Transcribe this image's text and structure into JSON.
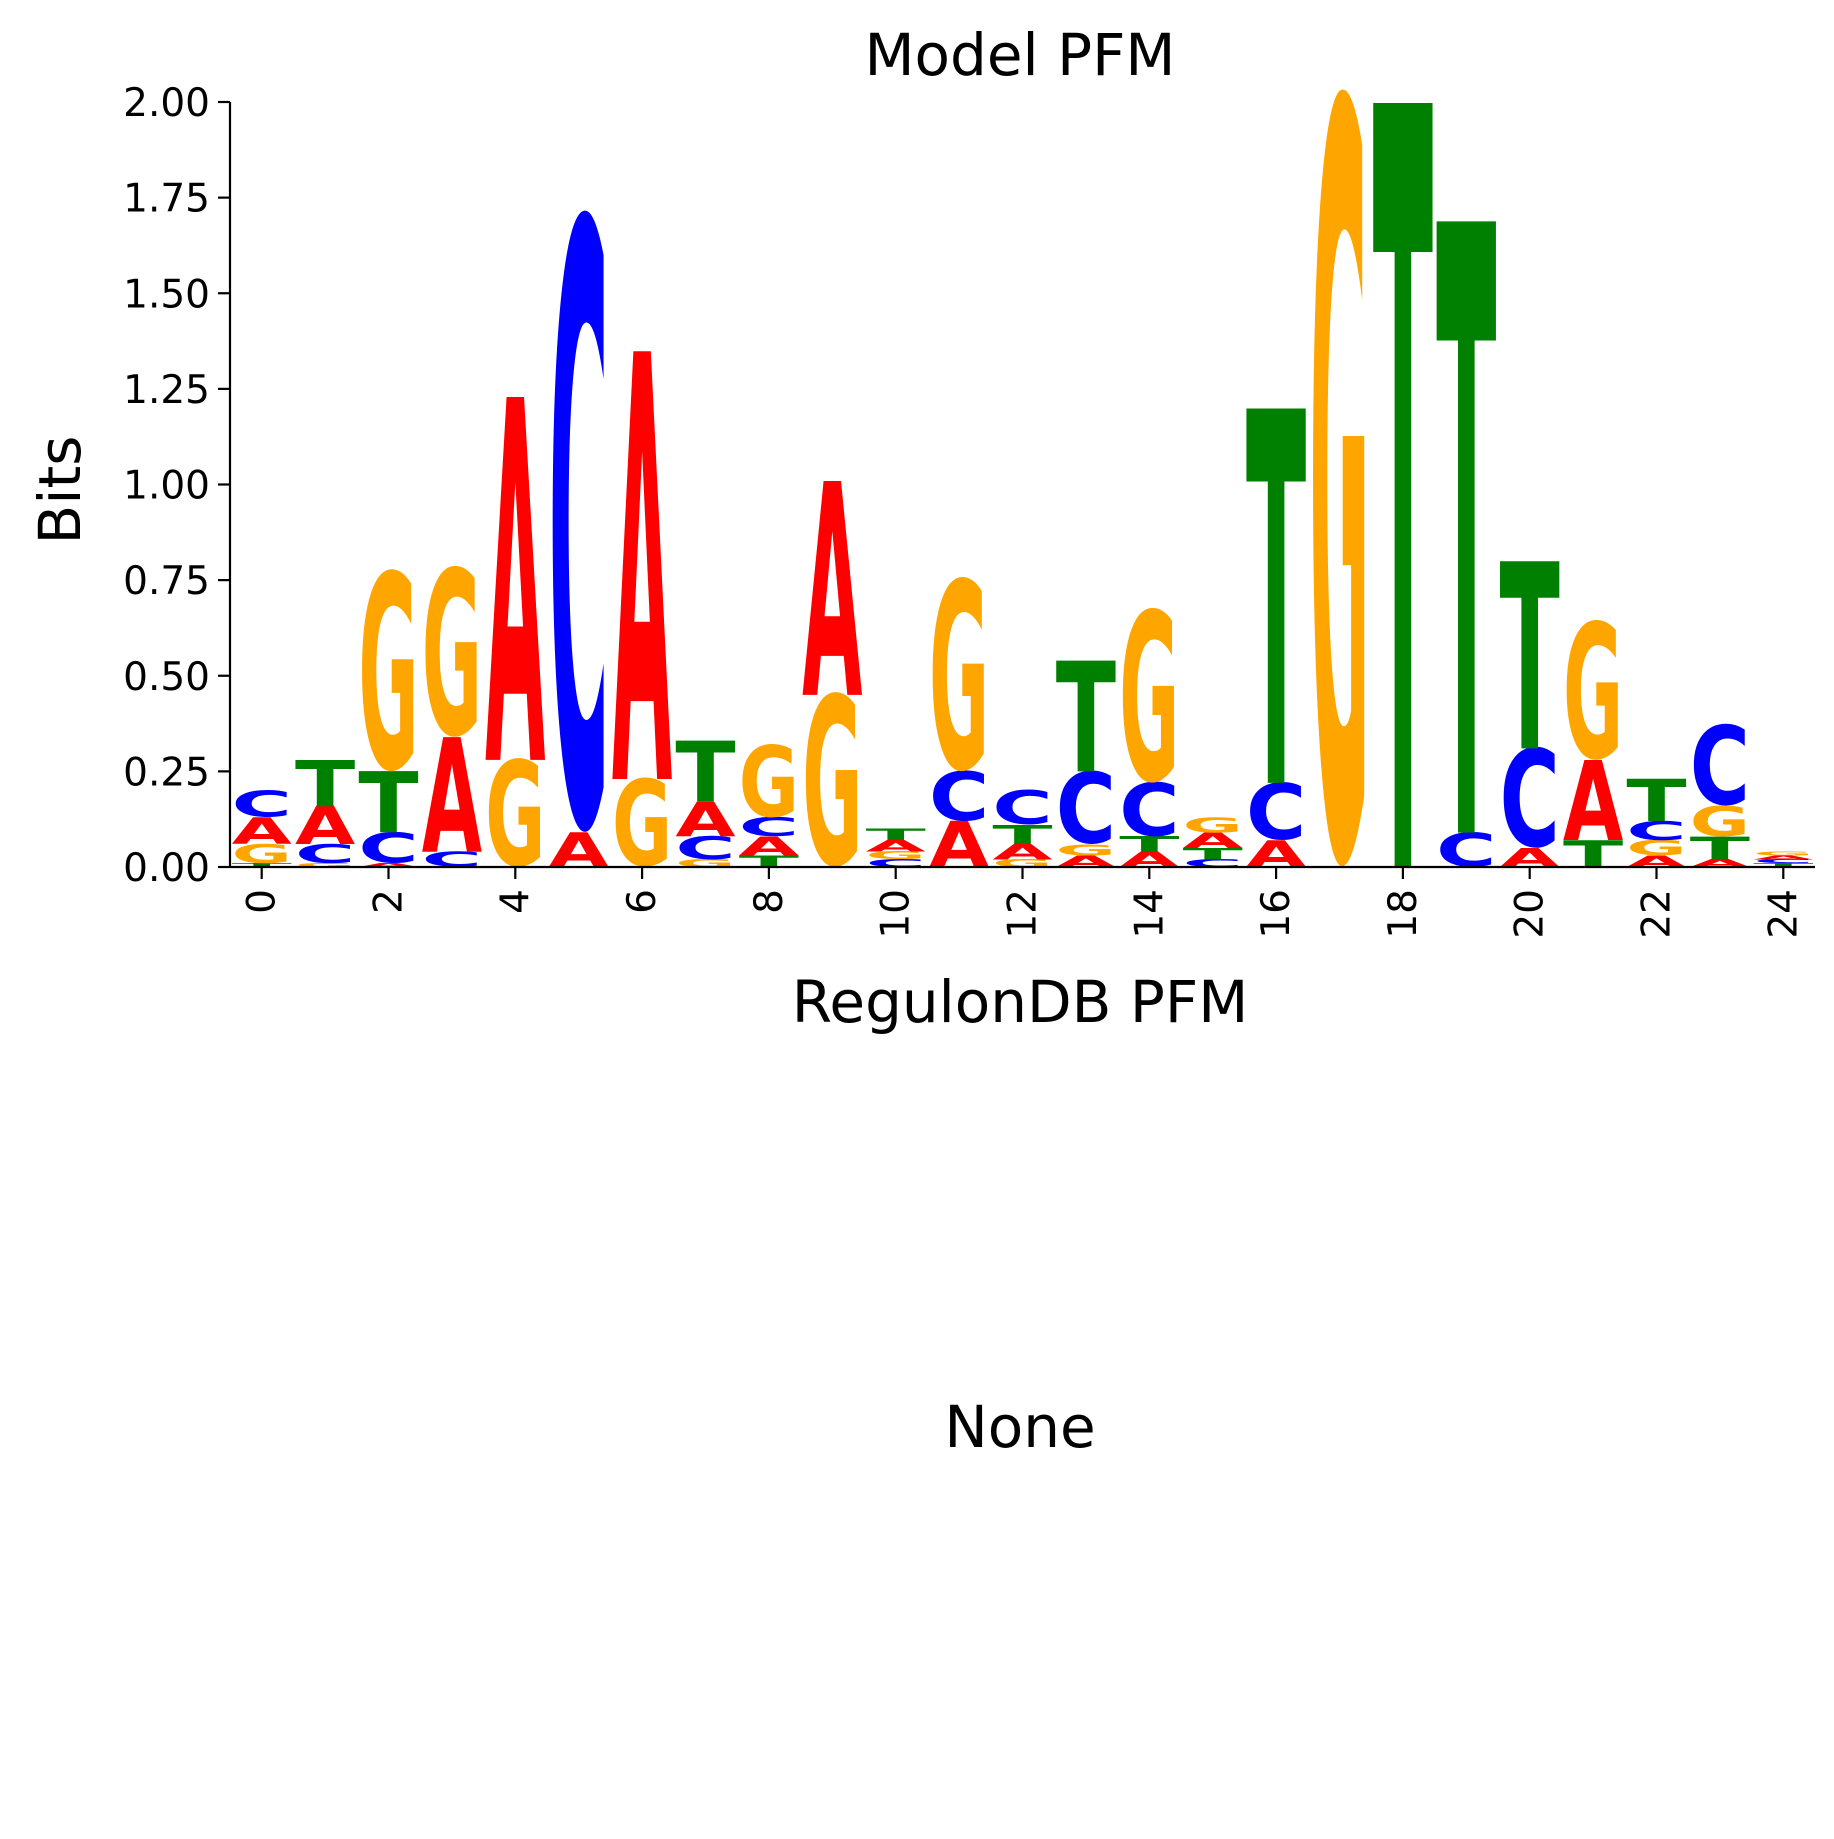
{
  "chart_data": {
    "type": "sequence-logo",
    "title": "Model PFM",
    "xlabel": "RegulonDB PFM",
    "ylabel": "Bits",
    "ylim": [
      0,
      2.0
    ],
    "xlim": [
      -0.5,
      24.5
    ],
    "y_ticks": [
      "0.00",
      "0.25",
      "0.50",
      "0.75",
      "1.00",
      "1.25",
      "1.50",
      "1.75",
      "2.00"
    ],
    "x_ticks": [
      "0",
      "2",
      "4",
      "6",
      "8",
      "10",
      "12",
      "14",
      "16",
      "18",
      "20",
      "22",
      "24"
    ],
    "colors": {
      "A": "#ff0000",
      "C": "#0000ff",
      "G": "#ffa500",
      "T": "#008000"
    },
    "positions": [
      {
        "pos": 0,
        "stack": [
          [
            "T",
            0.01
          ],
          [
            "G",
            0.05
          ],
          [
            "A",
            0.07
          ],
          [
            "C",
            0.07
          ]
        ]
      },
      {
        "pos": 1,
        "stack": [
          [
            "G",
            0.01
          ],
          [
            "C",
            0.05
          ],
          [
            "A",
            0.1
          ],
          [
            "T",
            0.12
          ]
        ]
      },
      {
        "pos": 2,
        "stack": [
          [
            "A",
            0.01
          ],
          [
            "C",
            0.08
          ],
          [
            "T",
            0.16
          ],
          [
            "G",
            0.52
          ]
        ]
      },
      {
        "pos": 3,
        "stack": [
          [
            "C",
            0.04
          ],
          [
            "A",
            0.3
          ],
          [
            "G",
            0.44
          ]
        ]
      },
      {
        "pos": 4,
        "stack": [
          [
            "G",
            0.28
          ],
          [
            "A",
            0.95
          ]
        ]
      },
      {
        "pos": 5,
        "stack": [
          [
            "A",
            0.09
          ],
          [
            "C",
            1.6
          ]
        ]
      },
      {
        "pos": 6,
        "stack": [
          [
            "G",
            0.23
          ],
          [
            "A",
            1.12
          ]
        ]
      },
      {
        "pos": 7,
        "stack": [
          [
            "G",
            0.02
          ],
          [
            "C",
            0.06
          ],
          [
            "A",
            0.09
          ],
          [
            "T",
            0.16
          ]
        ]
      },
      {
        "pos": 8,
        "stack": [
          [
            "T",
            0.03
          ],
          [
            "A",
            0.05
          ],
          [
            "C",
            0.05
          ],
          [
            "G",
            0.19
          ]
        ]
      },
      {
        "pos": 9,
        "stack": [
          [
            "G",
            0.45
          ],
          [
            "A",
            0.56
          ]
        ]
      },
      {
        "pos": 10,
        "stack": [
          [
            "C",
            0.02
          ],
          [
            "G",
            0.02
          ],
          [
            "A",
            0.03
          ],
          [
            "T",
            0.03
          ]
        ]
      },
      {
        "pos": 11,
        "stack": [
          [
            "A",
            0.12
          ],
          [
            "C",
            0.13
          ],
          [
            "G",
            0.5
          ]
        ]
      },
      {
        "pos": 12,
        "stack": [
          [
            "G",
            0.02
          ],
          [
            "A",
            0.04
          ],
          [
            "T",
            0.05
          ],
          [
            "C",
            0.09
          ]
        ]
      },
      {
        "pos": 13,
        "stack": [
          [
            "A",
            0.03
          ],
          [
            "G",
            0.03
          ],
          [
            "C",
            0.19
          ],
          [
            "T",
            0.29
          ]
        ]
      },
      {
        "pos": 14,
        "stack": [
          [
            "A",
            0.04
          ],
          [
            "T",
            0.04
          ],
          [
            "C",
            0.14
          ],
          [
            "G",
            0.45
          ]
        ]
      },
      {
        "pos": 15,
        "stack": [
          [
            "C",
            0.02
          ],
          [
            "T",
            0.03
          ],
          [
            "A",
            0.04
          ],
          [
            "G",
            0.04
          ]
        ]
      },
      {
        "pos": 16,
        "stack": [
          [
            "A",
            0.07
          ],
          [
            "C",
            0.15
          ],
          [
            "T",
            0.98
          ]
        ]
      },
      {
        "pos": 17,
        "stack": [
          [
            "G",
            2.0
          ]
        ]
      },
      {
        "pos": 18,
        "stack": [
          [
            "T",
            2.0
          ]
        ]
      },
      {
        "pos": 19,
        "stack": [
          [
            "C",
            0.09
          ],
          [
            "T",
            1.6
          ]
        ]
      },
      {
        "pos": 20,
        "stack": [
          [
            "A",
            0.05
          ],
          [
            "C",
            0.26
          ],
          [
            "T",
            0.49
          ]
        ]
      },
      {
        "pos": 21,
        "stack": [
          [
            "T",
            0.07
          ],
          [
            "A",
            0.21
          ],
          [
            "G",
            0.36
          ]
        ]
      },
      {
        "pos": 22,
        "stack": [
          [
            "A",
            0.03
          ],
          [
            "G",
            0.04
          ],
          [
            "C",
            0.05
          ],
          [
            "T",
            0.11
          ]
        ]
      },
      {
        "pos": 23,
        "stack": [
          [
            "A",
            0.02
          ],
          [
            "T",
            0.06
          ],
          [
            "G",
            0.08
          ],
          [
            "C",
            0.21
          ]
        ]
      },
      {
        "pos": 24,
        "stack": [
          [
            "T",
            0.01
          ],
          [
            "C",
            0.01
          ],
          [
            "A",
            0.01
          ],
          [
            "G",
            0.01
          ]
        ]
      }
    ]
  },
  "second_panel": {
    "label": "None"
  }
}
